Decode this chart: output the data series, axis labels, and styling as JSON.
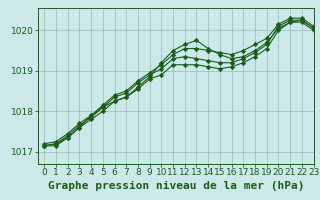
{
  "title": "Graphe pression niveau de la mer (hPa)",
  "background_color": "#cce8e8",
  "plot_bg_color": "#cce8e8",
  "grid_color": "#99bbbb",
  "line_color": "#1a5c1a",
  "marker_color": "#1a5c1a",
  "xlim": [
    -0.5,
    23
  ],
  "ylim": [
    1016.7,
    1020.55
  ],
  "yticks": [
    1017,
    1018,
    1019,
    1020
  ],
  "xticks": [
    0,
    1,
    2,
    3,
    4,
    5,
    6,
    7,
    8,
    9,
    10,
    11,
    12,
    13,
    14,
    15,
    16,
    17,
    18,
    19,
    20,
    21,
    22,
    23
  ],
  "series": [
    [
      1017.15,
      1017.15,
      1017.35,
      1017.6,
      1017.8,
      1018.0,
      1018.25,
      1018.35,
      1018.55,
      1018.8,
      1018.9,
      1019.15,
      1019.15,
      1019.15,
      1019.1,
      1019.05,
      1019.1,
      1019.2,
      1019.35,
      1019.55,
      1020.0,
      1020.2,
      1020.2,
      1020.0
    ],
    [
      1017.15,
      1017.2,
      1017.4,
      1017.65,
      1017.85,
      1018.1,
      1018.35,
      1018.45,
      1018.7,
      1018.9,
      1019.05,
      1019.3,
      1019.35,
      1019.3,
      1019.25,
      1019.2,
      1019.2,
      1019.3,
      1019.45,
      1019.65,
      1020.1,
      1020.25,
      1020.25,
      1020.05
    ],
    [
      1017.2,
      1017.25,
      1017.45,
      1017.7,
      1017.9,
      1018.15,
      1018.4,
      1018.5,
      1018.75,
      1018.95,
      1019.15,
      1019.4,
      1019.55,
      1019.55,
      1019.5,
      1019.45,
      1019.4,
      1019.5,
      1019.65,
      1019.8,
      1020.15,
      1020.3,
      1020.3,
      1020.1
    ],
    [
      1017.15,
      1017.2,
      1017.35,
      1017.6,
      1017.9,
      1018.1,
      1018.25,
      1018.35,
      1018.6,
      1018.85,
      1019.2,
      1019.5,
      1019.65,
      1019.75,
      1019.55,
      1019.4,
      1019.3,
      1019.35,
      1019.5,
      1019.7,
      1020.05,
      1020.2,
      1020.25,
      1020.05
    ]
  ],
  "marker_series": [
    3
  ],
  "no_marker_series": [
    0,
    1,
    2
  ],
  "title_fontsize": 8,
  "tick_fontsize": 6.5,
  "title_color": "#1a5c1a",
  "tick_color": "#1a5c1a"
}
